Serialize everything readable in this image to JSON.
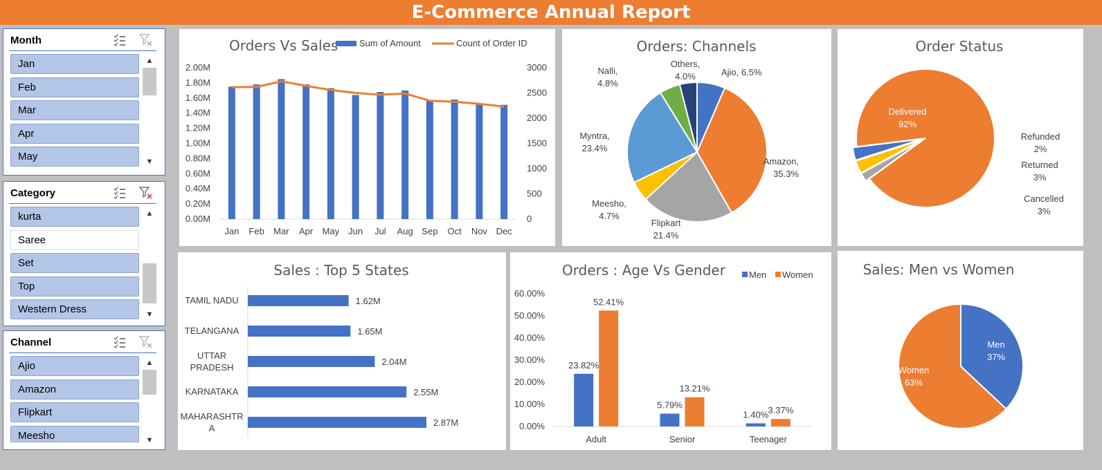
{
  "report_title": "E-Commerce Annual Report",
  "colors": {
    "orange": "#ed7d31",
    "blue": "#4472c4",
    "gray": "#a5a5a5",
    "yellow": "#ffc000",
    "lightblue": "#5b9bd5",
    "green": "#70ad47",
    "navy": "#264478"
  },
  "slicers": {
    "month": {
      "title": "Month",
      "items": [
        "Jan",
        "Feb",
        "Mar",
        "Apr",
        "May"
      ]
    },
    "category": {
      "title": "Category",
      "items": [
        "kurta",
        "Saree",
        "Set",
        "Top",
        "Western Dress"
      ],
      "selected": [
        true,
        false,
        true,
        true,
        true
      ]
    },
    "channel": {
      "title": "Channel",
      "items": [
        "Ajio",
        "Amazon",
        "Flipkart",
        "Meesho"
      ]
    }
  },
  "chart_data": [
    {
      "id": "orders-vs-sales",
      "type": "bar+line",
      "title": "Orders Vs Sales",
      "categories": [
        "Jan",
        "Feb",
        "Mar",
        "Apr",
        "May",
        "Jun",
        "Jul",
        "Aug",
        "Sep",
        "Oct",
        "Nov",
        "Dec"
      ],
      "series": [
        {
          "name": "Sum of Amount",
          "type": "bar",
          "axis": "left",
          "values": [
            1.75,
            1.78,
            1.85,
            1.78,
            1.73,
            1.64,
            1.68,
            1.7,
            1.57,
            1.58,
            1.53,
            1.51
          ]
        },
        {
          "name": "Count of Order ID",
          "type": "line",
          "axis": "right",
          "values": [
            2615,
            2620,
            2730,
            2640,
            2560,
            2500,
            2465,
            2490,
            2345,
            2325,
            2285,
            2230
          ]
        }
      ],
      "yticks_left": [
        "0.00M",
        "0.20M",
        "0.40M",
        "0.60M",
        "0.80M",
        "1.00M",
        "1.20M",
        "1.40M",
        "1.60M",
        "1.80M",
        "2.00M"
      ],
      "yticks_right": [
        "0",
        "500",
        "1000",
        "1500",
        "2000",
        "2500",
        "3000"
      ],
      "ylim_left": [
        0,
        2
      ],
      "ylim_right": [
        0,
        3000
      ],
      "legend": "top"
    },
    {
      "id": "orders-channels",
      "type": "pie",
      "title": "Orders: Channels",
      "slices": [
        {
          "name": "Ajio",
          "value": 6.5,
          "label": "Ajio, 6.5%",
          "color": "#4472c4"
        },
        {
          "name": "Amazon",
          "value": 35.3,
          "label": [
            "Amazon,",
            "35.3%"
          ],
          "color": "#ed7d31"
        },
        {
          "name": "Flipkart",
          "value": 21.4,
          "label": [
            "Flipkart",
            "21.4%"
          ],
          "color": "#a5a5a5"
        },
        {
          "name": "Meesho",
          "value": 4.7,
          "label": [
            "Meesho,",
            "4.7%"
          ],
          "color": "#ffc000"
        },
        {
          "name": "Myntra",
          "value": 23.4,
          "label": [
            "Myntra,",
            "23.4%"
          ],
          "color": "#5b9bd5"
        },
        {
          "name": "Nalli",
          "value": 4.8,
          "label": [
            "Nalli,",
            "4.8%"
          ],
          "color": "#70ad47"
        },
        {
          "name": "Others",
          "value": 4.0,
          "label": [
            "Others,",
            "4.0%"
          ],
          "color": "#264478"
        }
      ]
    },
    {
      "id": "order-status",
      "type": "pie",
      "title": "Order Status",
      "slices": [
        {
          "name": "Delivered",
          "value": 92,
          "label": [
            "Delivered",
            "92%"
          ],
          "color": "#ed7d31"
        },
        {
          "name": "Refunded",
          "value": 2,
          "label": [
            "Refunded",
            "2%"
          ],
          "color": "#a5a5a5"
        },
        {
          "name": "Returned",
          "value": 3,
          "label": [
            "Returned",
            "3%"
          ],
          "color": "#ffc000"
        },
        {
          "name": "Cancelled",
          "value": 3,
          "label": [
            "Cancelled",
            "3%"
          ],
          "color": "#4472c4"
        }
      ]
    },
    {
      "id": "top5-states",
      "type": "bar",
      "orientation": "horizontal",
      "title": "Sales : Top 5 States",
      "categories": [
        [
          "TAMIL NADU"
        ],
        [
          "TELANGANA"
        ],
        [
          "UTTAR",
          "PRADESH"
        ],
        [
          "KARNATAKA"
        ],
        [
          "MAHARASHTR",
          "A"
        ]
      ],
      "values": [
        1.62,
        1.65,
        2.04,
        2.55,
        2.87
      ],
      "data_labels": [
        "1.62M",
        "1.65M",
        "2.04M",
        "2.55M",
        "2.87M"
      ]
    },
    {
      "id": "age-vs-gender",
      "type": "bar",
      "title": "Orders : Age Vs Gender",
      "categories": [
        "Adult",
        "Senior",
        "Teenager"
      ],
      "series": [
        {
          "name": "Men",
          "values": [
            23.82,
            5.79,
            1.4
          ],
          "labels": [
            "23.82%",
            "5.79%",
            "1.40%"
          ]
        },
        {
          "name": "Women",
          "values": [
            52.41,
            13.21,
            3.37
          ],
          "labels": [
            "52.41%",
            "13.21%",
            "3.37%"
          ]
        }
      ],
      "yticks": [
        "0.00%",
        "10.00%",
        "20.00%",
        "30.00%",
        "40.00%",
        "50.00%",
        "60.00%"
      ],
      "ylim": [
        0,
        60
      ],
      "legend": "top-right"
    },
    {
      "id": "men-vs-women",
      "type": "pie",
      "title": "Sales: Men vs Women",
      "slices": [
        {
          "name": "Men",
          "value": 37,
          "label": [
            "Men",
            "37%"
          ],
          "color": "#4472c4"
        },
        {
          "name": "Women",
          "value": 63,
          "label": [
            "Women",
            "63%"
          ],
          "color": "#ed7d31"
        }
      ]
    }
  ]
}
